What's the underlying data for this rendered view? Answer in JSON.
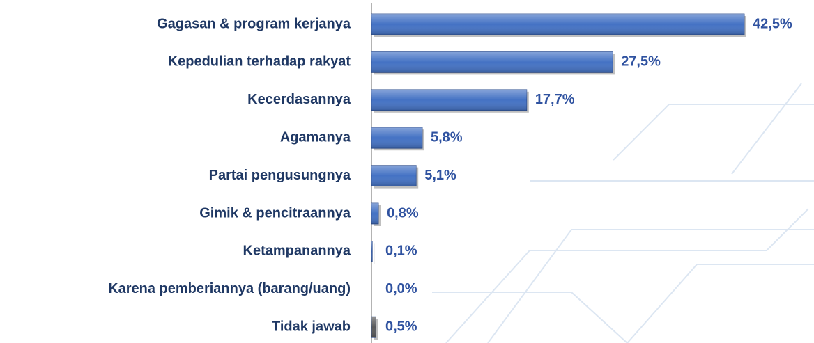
{
  "chart_data": {
    "type": "barh",
    "categories": [
      "Gagasan & program kerjanya",
      "Kepedulian terhadap rakyat",
      "Kecerdasannya",
      "Agamanya",
      "Partai pengusungnya",
      "Gimik & pencitraannya",
      "Ketampanannya",
      "Karena pemberiannya (barang/uang)",
      "Tidak jawab"
    ],
    "values": [
      42.5,
      27.5,
      17.7,
      5.8,
      5.1,
      0.8,
      0.1,
      0.0,
      0.5
    ],
    "value_labels": [
      "42,5%",
      "27,5%",
      "17,7%",
      "5,8%",
      "5,1%",
      "0,8%",
      "0,1%",
      "0,0%",
      "0,5%"
    ],
    "colors": [
      "#4472c4",
      "#4472c4",
      "#4472c4",
      "#4472c4",
      "#4472c4",
      "#4472c4",
      "#4472c4",
      "#4472c4",
      "#595959"
    ],
    "xlim": [
      0,
      45
    ]
  }
}
